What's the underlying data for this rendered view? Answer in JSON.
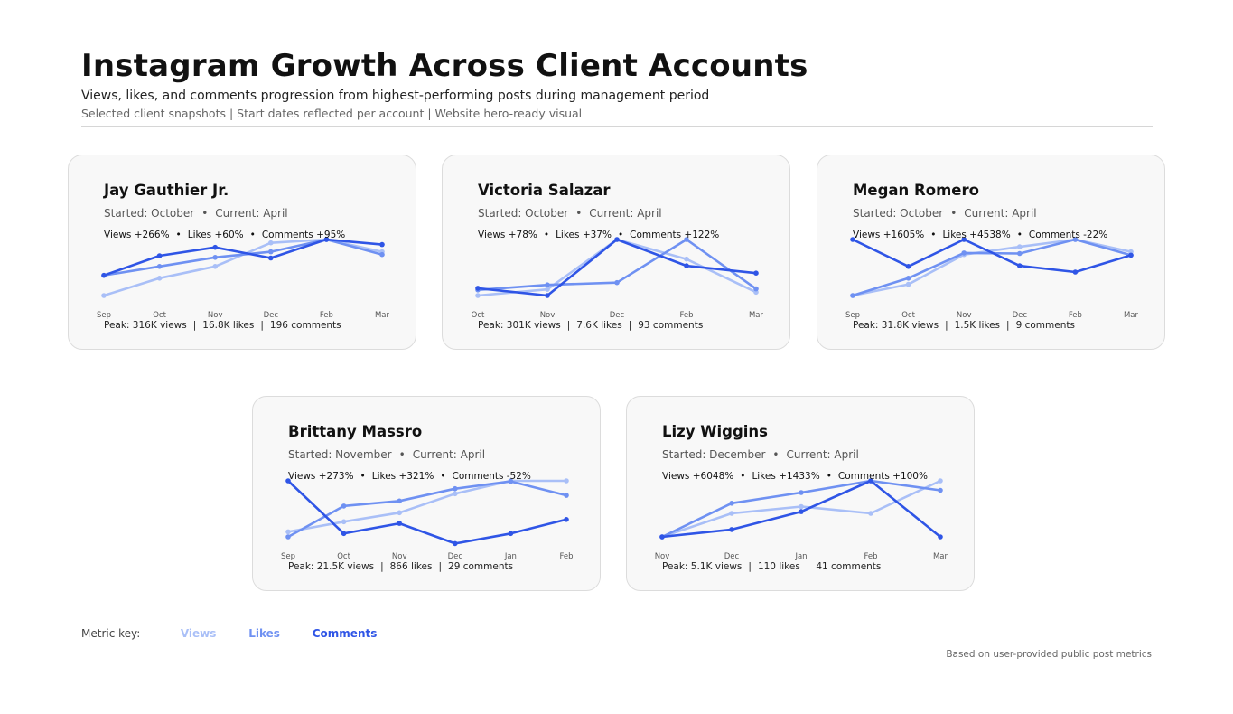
{
  "header": {
    "title": "Instagram Growth Across Client Accounts",
    "subtitle": "Views, likes, and comments progression from highest-performing posts during management period",
    "subsub": "Selected client snapshots | Start dates reflected per account | Website hero-ready visual"
  },
  "legend": {
    "label": "Metric key:",
    "views": "Views",
    "likes": "Likes",
    "comments": "Comments"
  },
  "footer": "Based on user-provided public post metrics",
  "colors": {
    "views": "#a9bff7",
    "likes": "#6f91f2",
    "comments": "#2f55e6",
    "card_bg": "#f8f8f8"
  },
  "cards": [
    {
      "name": "Jay Gauthier Jr.",
      "started": "Started: October",
      "current": "Current: April",
      "growth_views": "Views +266%",
      "growth_likes": "Likes +60%",
      "growth_comments": "Comments +95%",
      "peak_views": "Peak: 316K views",
      "peak_likes": "16.8K likes",
      "peak_comments": "196 comments"
    },
    {
      "name": "Victoria Salazar",
      "started": "Started: October",
      "current": "Current: April",
      "growth_views": "Views +78%",
      "growth_likes": "Likes +37%",
      "growth_comments": "Comments +122%",
      "peak_views": "Peak: 301K views",
      "peak_likes": "7.6K likes",
      "peak_comments": "93 comments"
    },
    {
      "name": "Megan Romero",
      "started": "Started: October",
      "current": "Current: April",
      "growth_views": "Views +1605%",
      "growth_likes": "Likes +4538%",
      "growth_comments": "Comments -22%",
      "peak_views": "Peak: 31.8K views",
      "peak_likes": "1.5K likes",
      "peak_comments": "9 comments"
    },
    {
      "name": "Brittany Massro",
      "started": "Started: November",
      "current": "Current: April",
      "growth_views": "Views +273%",
      "growth_likes": "Likes +321%",
      "growth_comments": "Comments -52%",
      "peak_views": "Peak: 21.5K views",
      "peak_likes": "866 likes",
      "peak_comments": "29 comments"
    },
    {
      "name": "Lizy Wiggins",
      "started": "Started: December",
      "current": "Current: April",
      "growth_views": "Views +6048%",
      "growth_likes": "Likes +1433%",
      "growth_comments": "Comments +100%",
      "peak_views": "Peak: 5.1K views",
      "peak_likes": "110 likes",
      "peak_comments": "41 comments"
    }
  ],
  "chart_data": [
    {
      "type": "line",
      "title": "Jay Gauthier Jr.",
      "x": [
        "Sep",
        "Oct",
        "Nov",
        "Dec",
        "Feb",
        "Mar"
      ],
      "ylim": [
        0,
        1
      ],
      "series": [
        {
          "name": "Views",
          "values": [
            0.0,
            0.31,
            0.52,
            0.94,
            1.0,
            0.78
          ]
        },
        {
          "name": "Likes",
          "values": [
            0.36,
            0.52,
            0.68,
            0.78,
            1.0,
            0.73
          ]
        },
        {
          "name": "Comments",
          "values": [
            0.36,
            0.71,
            0.86,
            0.67,
            1.0,
            0.91
          ]
        }
      ]
    },
    {
      "type": "line",
      "title": "Victoria Salazar",
      "x": [
        "Oct",
        "Nov",
        "Dec",
        "Feb",
        "Mar"
      ],
      "ylim": [
        0,
        1
      ],
      "series": [
        {
          "name": "Views",
          "values": [
            0.0,
            0.11,
            1.0,
            0.65,
            0.06
          ]
        },
        {
          "name": "Likes",
          "values": [
            0.1,
            0.19,
            0.23,
            1.0,
            0.12
          ]
        },
        {
          "name": "Comments",
          "values": [
            0.13,
            0.0,
            1.0,
            0.53,
            0.4
          ]
        }
      ]
    },
    {
      "type": "line",
      "title": "Megan Romero",
      "x": [
        "Sep",
        "Oct",
        "Nov",
        "Dec",
        "Feb",
        "Mar"
      ],
      "ylim": [
        0,
        1
      ],
      "series": [
        {
          "name": "Views",
          "values": [
            0.0,
            0.2,
            0.73,
            0.87,
            1.0,
            0.78
          ]
        },
        {
          "name": "Likes",
          "values": [
            0.0,
            0.31,
            0.76,
            0.75,
            1.0,
            0.72
          ]
        },
        {
          "name": "Comments",
          "values": [
            1.0,
            0.52,
            1.0,
            0.53,
            0.42,
            0.72
          ]
        }
      ]
    },
    {
      "type": "line",
      "title": "Brittany Massro",
      "x": [
        "Sep",
        "Oct",
        "Nov",
        "Dec",
        "Jan",
        "Feb"
      ],
      "ylim": [
        0,
        1
      ],
      "series": [
        {
          "name": "Views",
          "values": [
            0.09,
            0.27,
            0.43,
            0.77,
            1.0,
            1.0
          ]
        },
        {
          "name": "Likes",
          "values": [
            0.0,
            0.55,
            0.64,
            0.86,
            0.99,
            0.74
          ]
        },
        {
          "name": "Comments",
          "values": [
            1.0,
            0.06,
            0.24,
            -0.12,
            0.06,
            0.31
          ]
        }
      ]
    },
    {
      "type": "line",
      "title": "Lizy Wiggins",
      "x": [
        "Nov",
        "Dec",
        "Jan",
        "Feb",
        "Mar"
      ],
      "ylim": [
        0,
        1
      ],
      "series": [
        {
          "name": "Views",
          "values": [
            0.0,
            0.42,
            0.54,
            0.42,
            1.0
          ]
        },
        {
          "name": "Likes",
          "values": [
            0.0,
            0.6,
            0.79,
            1.0,
            0.83
          ]
        },
        {
          "name": "Comments",
          "values": [
            0.0,
            0.13,
            0.45,
            1.0,
            0.0
          ]
        }
      ]
    }
  ]
}
